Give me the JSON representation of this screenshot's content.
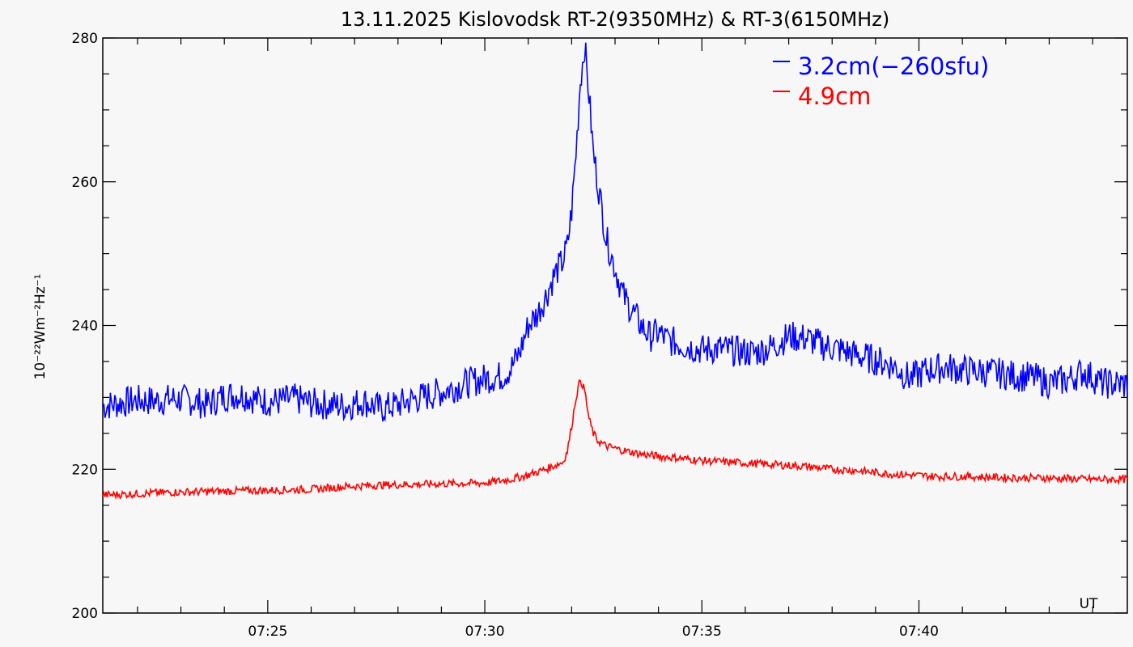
{
  "chart_data": {
    "type": "line",
    "title": "13.11.2025 Kislovodsk RT-2(9350MHz) & RT-3(6150MHz)",
    "ylabel": "10⁻²²Wm⁻²Hz⁻¹",
    "xlabel": "UT",
    "xlim": [
      441.2,
      464.8
    ],
    "ylim": [
      200,
      280
    ],
    "x_unit": "minutes since 00:00 UT",
    "x_ticks": [
      {
        "value": 445,
        "label": "07:25"
      },
      {
        "value": 450,
        "label": "07:30"
      },
      {
        "value": 455,
        "label": "07:35"
      },
      {
        "value": 460,
        "label": "07:40"
      }
    ],
    "y_ticks": [
      200,
      220,
      240,
      260,
      280
    ],
    "legend_position": "top-right",
    "grid": false,
    "series": [
      {
        "name": "3.2cm(−260sfu)",
        "color": "#0000ff",
        "points": [
          [
            441.2,
            228.8
          ],
          [
            441.6,
            229.2
          ],
          [
            442.0,
            229.6
          ],
          [
            442.4,
            229.5
          ],
          [
            442.8,
            229.8
          ],
          [
            443.2,
            229.6
          ],
          [
            443.6,
            229.0
          ],
          [
            444.0,
            230.2
          ],
          [
            444.4,
            230.4
          ],
          [
            444.8,
            229.6
          ],
          [
            445.2,
            229.4
          ],
          [
            445.6,
            229.8
          ],
          [
            446.0,
            229.2
          ],
          [
            446.4,
            229.0
          ],
          [
            446.8,
            228.8
          ],
          [
            447.2,
            229.5
          ],
          [
            447.6,
            228.4
          ],
          [
            448.0,
            229.0
          ],
          [
            448.4,
            229.8
          ],
          [
            448.8,
            230.4
          ],
          [
            449.2,
            231.2
          ],
          [
            449.6,
            232.0
          ],
          [
            450.0,
            232.6
          ],
          [
            450.4,
            233.0
          ],
          [
            450.6,
            234.0
          ],
          [
            450.8,
            236.2
          ],
          [
            451.0,
            240.0
          ],
          [
            451.2,
            241.5
          ],
          [
            451.4,
            244.0
          ],
          [
            451.6,
            247.0
          ],
          [
            451.8,
            249.0
          ],
          [
            451.9,
            251.0
          ],
          [
            452.0,
            256.0
          ],
          [
            452.1,
            264.0
          ],
          [
            452.2,
            274.0
          ],
          [
            452.3,
            279.0
          ],
          [
            452.4,
            272.0
          ],
          [
            452.5,
            264.0
          ],
          [
            452.6,
            260.0
          ],
          [
            452.7,
            256.0
          ],
          [
            452.8,
            252.0
          ],
          [
            453.0,
            248.0
          ],
          [
            453.2,
            244.0
          ],
          [
            453.4,
            242.0
          ],
          [
            453.6,
            240.0
          ],
          [
            453.8,
            238.5
          ],
          [
            454.0,
            239.0
          ],
          [
            454.2,
            238.0
          ],
          [
            454.6,
            237.2
          ],
          [
            455.0,
            236.6
          ],
          [
            455.4,
            236.8
          ],
          [
            455.8,
            236.4
          ],
          [
            456.2,
            236.2
          ],
          [
            456.6,
            237.0
          ],
          [
            457.0,
            238.5
          ],
          [
            457.4,
            238.2
          ],
          [
            457.8,
            237.2
          ],
          [
            458.2,
            236.6
          ],
          [
            458.6,
            235.8
          ],
          [
            459.0,
            235.2
          ],
          [
            459.4,
            234.4
          ],
          [
            459.8,
            232.6
          ],
          [
            460.2,
            233.8
          ],
          [
            460.6,
            234.2
          ],
          [
            461.0,
            233.8
          ],
          [
            461.4,
            233.6
          ],
          [
            461.8,
            233.4
          ],
          [
            462.2,
            233.0
          ],
          [
            462.6,
            232.8
          ],
          [
            463.0,
            232.0
          ],
          [
            463.4,
            232.4
          ],
          [
            463.8,
            233.6
          ],
          [
            464.2,
            232.0
          ],
          [
            464.8,
            231.8
          ]
        ]
      },
      {
        "name": "4.9cm",
        "color": "#ff0000",
        "points": [
          [
            441.2,
            216.4
          ],
          [
            442.0,
            216.6
          ],
          [
            442.8,
            216.8
          ],
          [
            443.6,
            216.9
          ],
          [
            444.4,
            217.0
          ],
          [
            445.2,
            217.1
          ],
          [
            446.0,
            217.2
          ],
          [
            446.8,
            217.6
          ],
          [
            447.6,
            217.8
          ],
          [
            448.4,
            217.9
          ],
          [
            449.2,
            218.0
          ],
          [
            450.0,
            218.1
          ],
          [
            450.6,
            218.6
          ],
          [
            451.0,
            219.2
          ],
          [
            451.4,
            220.0
          ],
          [
            451.8,
            221.0
          ],
          [
            451.9,
            222.5
          ],
          [
            452.0,
            226.0
          ],
          [
            452.1,
            230.0
          ],
          [
            452.2,
            232.5
          ],
          [
            452.3,
            231.0
          ],
          [
            452.4,
            227.0
          ],
          [
            452.5,
            225.0
          ],
          [
            452.6,
            224.0
          ],
          [
            452.8,
            223.2
          ],
          [
            453.2,
            222.6
          ],
          [
            453.6,
            222.1
          ],
          [
            454.0,
            221.8
          ],
          [
            454.4,
            221.6
          ],
          [
            455.0,
            221.2
          ],
          [
            455.6,
            221.0
          ],
          [
            456.2,
            220.8
          ],
          [
            456.8,
            220.6
          ],
          [
            457.4,
            220.4
          ],
          [
            458.0,
            220.0
          ],
          [
            458.6,
            219.8
          ],
          [
            459.2,
            219.4
          ],
          [
            459.8,
            219.2
          ],
          [
            460.4,
            219.0
          ],
          [
            461.0,
            219.0
          ],
          [
            461.6,
            218.9
          ],
          [
            462.2,
            218.8
          ],
          [
            462.8,
            218.8
          ],
          [
            463.4,
            218.7
          ],
          [
            464.0,
            218.6
          ],
          [
            464.8,
            218.6
          ]
        ]
      }
    ]
  }
}
